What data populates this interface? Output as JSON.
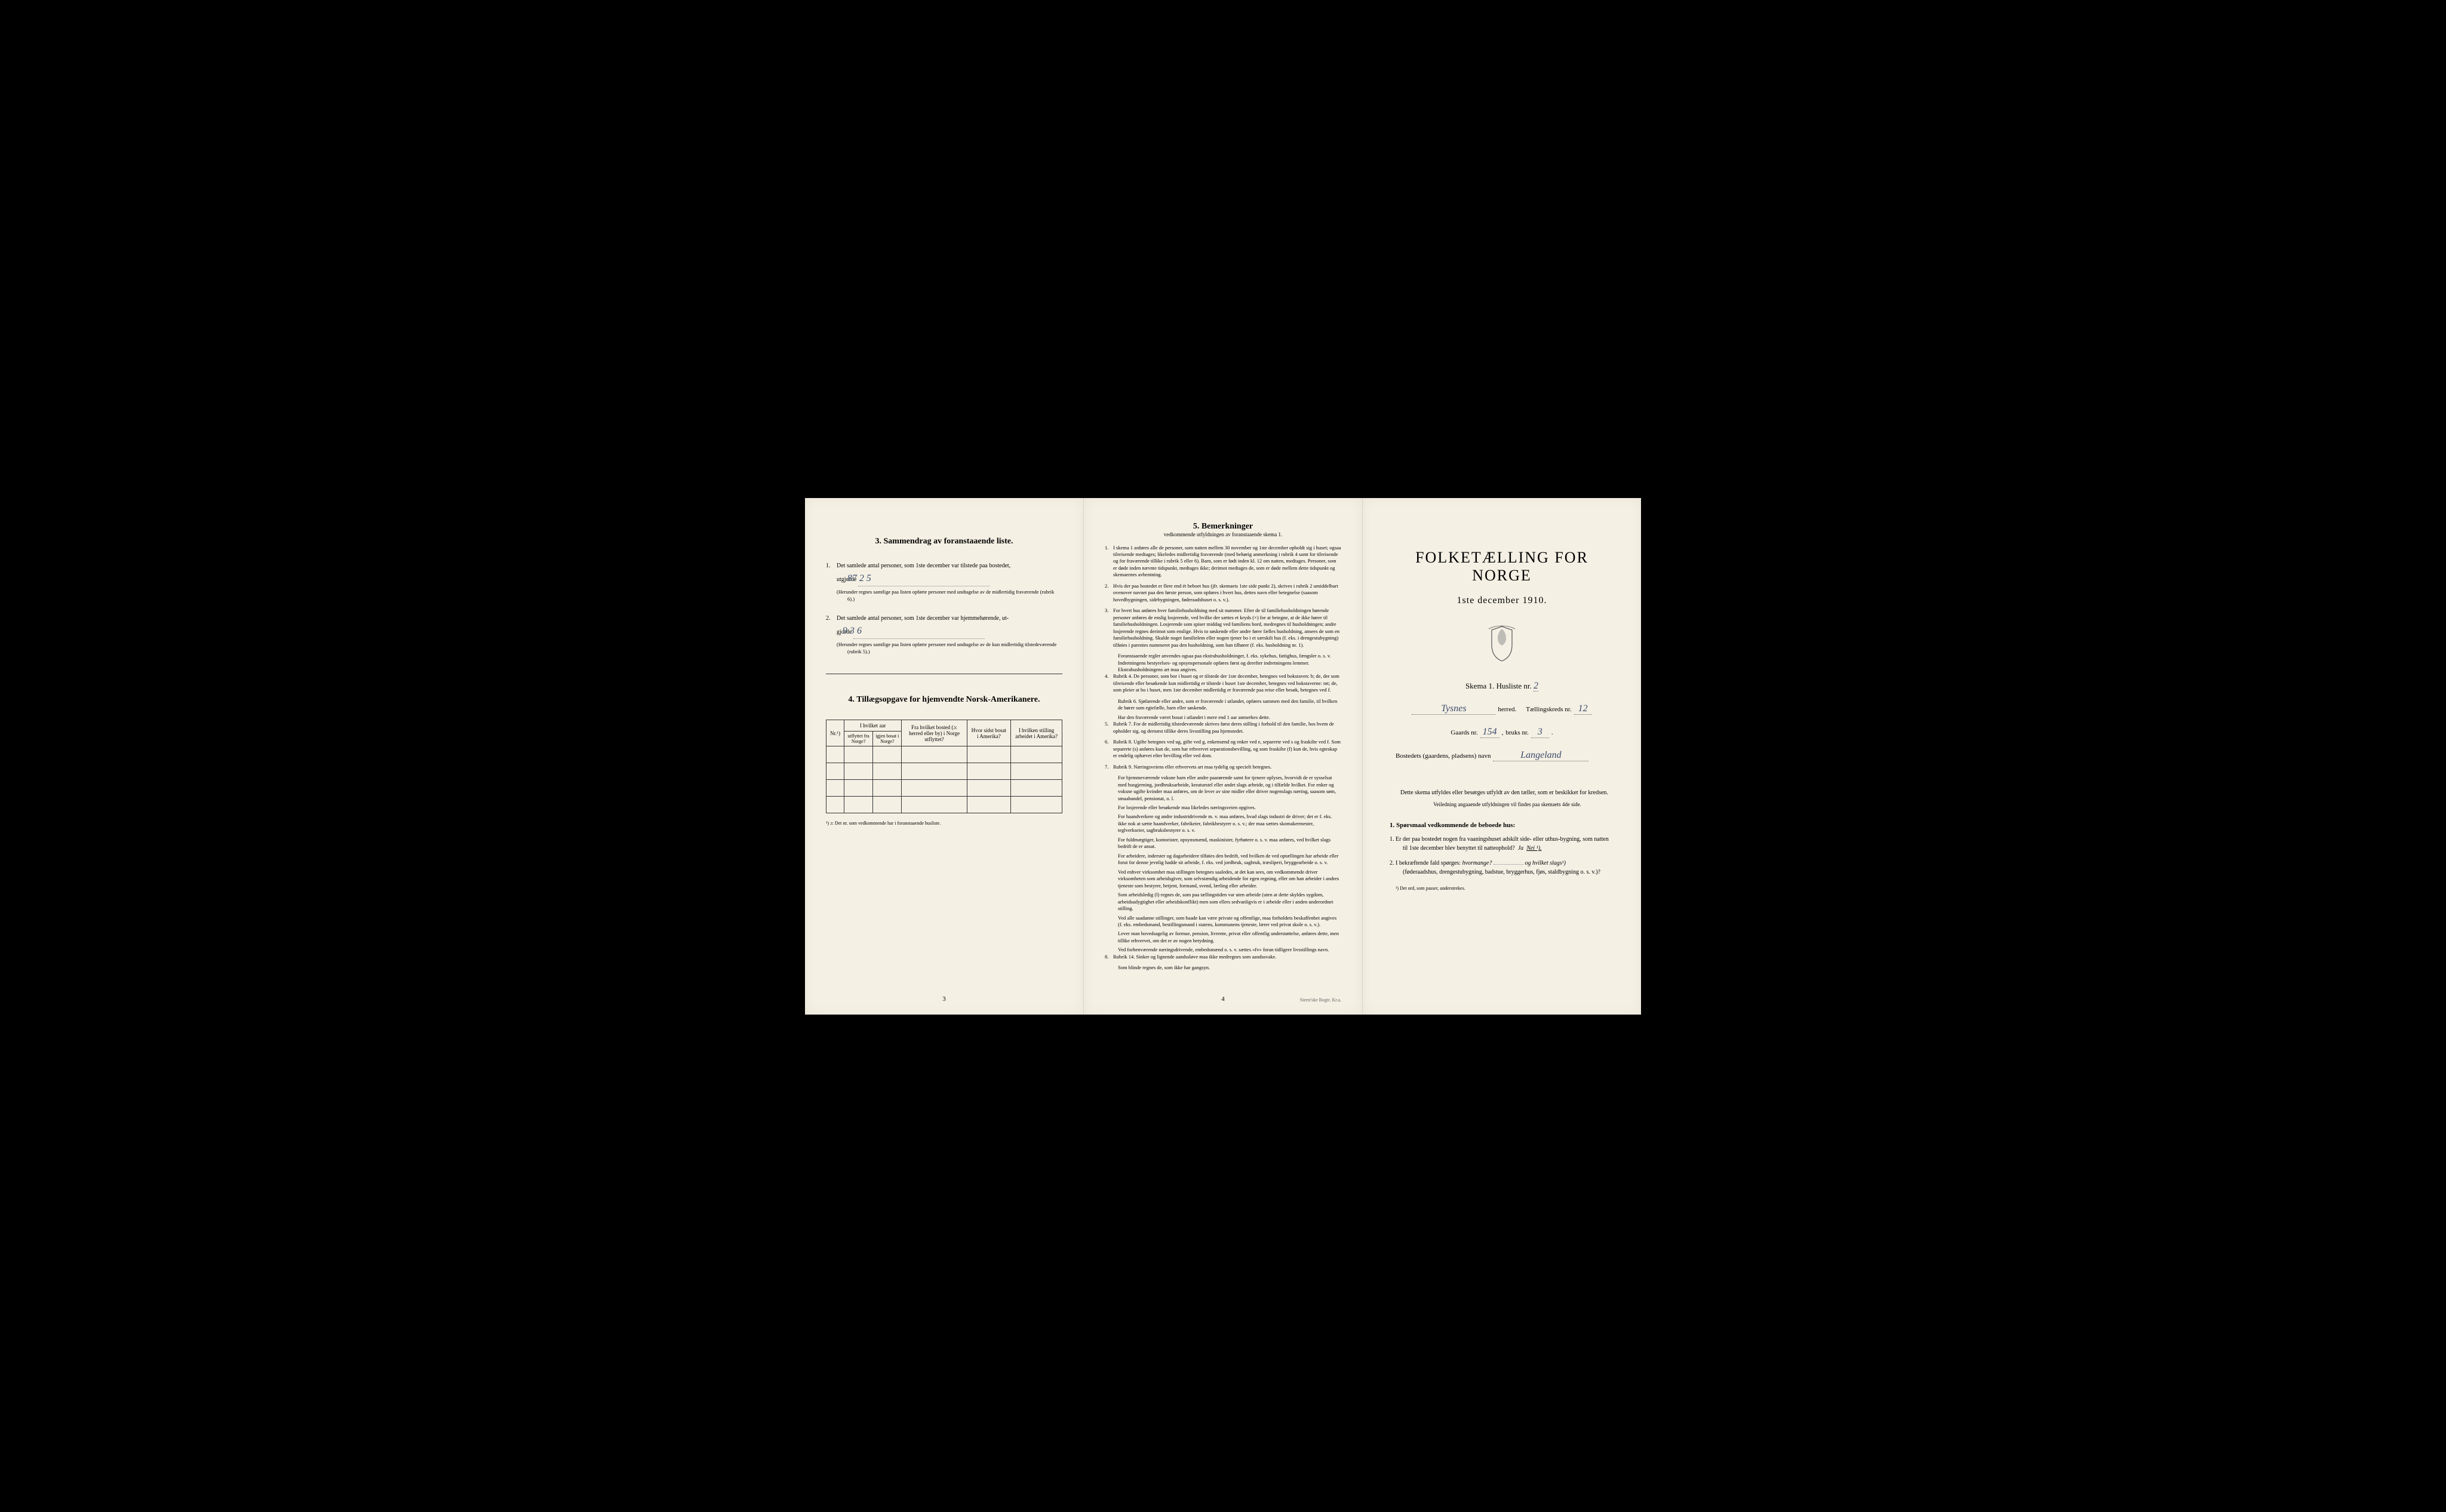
{
  "page_left": {
    "page_number": "3",
    "section3": {
      "heading": "3.   Sammendrag av foranstaaende liste.",
      "item1_pre": "Det samlede antal personer, som 1ste december var tilstede paa bostedet,",
      "item1_label": "utgjorde",
      "item1_value": "87  2  5",
      "item1_note": "(Herunder regnes samtlige paa listen opførte personer med undtagelse av de midlertidig fraværende (rubrik 6).)",
      "item2_pre": "Det samlede antal personer, som 1ste december var hjemmehørende, ut-",
      "item2_label": "gjorde",
      "item2_value": "9   3  6",
      "item2_note": "(Herunder regnes samtlige paa listen opførte personer med undtagelse av de kun midlertidig tilstedeværende (rubrik 5).)"
    },
    "section4": {
      "heading": "4.  Tillægsopgave for hjemvendte Norsk-Amerikanere.",
      "col_nr": "Nr.¹)",
      "col_year_group": "I hvilket aar",
      "col_emigrated": "utflyttet fra Norge?",
      "col_returned": "igjen bosat i Norge?",
      "col_from": "Fra hvilket bosted (ɔ: herred eller by) i Norge utflyttet?",
      "col_last_us": "Hvor sidst bosat i Amerika?",
      "col_occupation": "I hvilken stilling arbeidet i Amerika?",
      "footnote": "¹) ɔ: Det nr. som vedkommende har i foranstaaende husliste."
    }
  },
  "page_middle": {
    "page_number": "4",
    "printer": "Steen'ske Bogtr. Kr.a.",
    "heading": "5.   Bemerkninger",
    "subheading": "vedkommende utfyldningen av foranstaaende skema 1.",
    "items": [
      {
        "n": "1.",
        "text": "I skema 1 anføres alle de personer, som natten mellem 30 november og 1ste december opholdt sig i huset; ogsaa tilreisende medtages; likeledes midlertidig fraværende (med behørig anmerkning i rubrik 4 samt for tilreisende og for fraværende tillike i rubrik 5 eller 6). Barn, som er født inden kl. 12 om natten, medtages. Personer, som er døde inden nævnte tidspunkt, medtages ikke; derimot medtages de, som er døde mellem dette tidspunkt og skemaernes avhentning."
      },
      {
        "n": "2.",
        "text": "Hvis der paa bostedet er flere end ét beboet hus (jfr. skemaets 1ste side punkt 2), skrives i rubrik 2 umiddelbart ovenover navnet paa den første person, som opføres i hvert hus, dettes navn eller betegnelse (saasom hovedbygningen, sidebygningen, føderaadshuset o. s. v.)."
      },
      {
        "n": "3.",
        "text": "For hvert hus anføres hver familiehusholdning med sit nummer. Efter de til familiehusholdningen hørende personer anføres de enslig losjerende, ved hvilke der sættes et kryds (×) for at betegne, at de ikke hører til familiehusholdningen. Losjerende som spiser middag ved familiens bord, medregnes til husholdningen; andre losjerende regnes derimot som enslige. Hvis to søskende eller andre fører fælles husholdning, ansees de som en familiehusholdning. Skulde noget familielem eller nogen tjener bo i et særskilt hus (f. eks. i drengestubygning) tilføies i parentes nummeret paa den husholdning, som han tilhører (f. eks. husholdning nr. 1).",
        "sub": "Foranstaaende regler anvendes ogsaa paa ekstrahusholdninger, f. eks. sykehus, fattighus, fængsler o. s. v. Indretningens bestyrelses- og opsynspersonale opføres først og derefter indretningens lemmer. Ekstrahusholdningens art maa angives."
      },
      {
        "n": "4.",
        "text": "Rubrik 4. De personer, som bor i huset og er tilstede der 1ste december, betegnes ved bokstaven: b; de, der som tilreisende eller besøkende kun midlertidig er tilstede i huset 1ste december, betegnes ved bokstaverne: mt; de, som pleier at bo i huset, men 1ste december midlertidig er fraværende paa reise eller besøk, betegnes ved f.",
        "subs": [
          "Rubrik 6. Sjøfarende eller andre, som er fraværende i utlandet, opføres sammen med den familie, til hvilken de hører som egtefælle, barn eller søskende.",
          "Har den fraværende været bosat i utlandet i mere end 1 aar anmerkes dette."
        ]
      },
      {
        "n": "5.",
        "text": "Rubrik 7. For de midlertidig tilstedeværende skrives først deres stilling i forhold til den familie, hos hvem de opholder sig, og dernæst tillike deres livsstilling paa hjemstedet."
      },
      {
        "n": "6.",
        "text": "Rubrik 8. Ugifte betegnes ved ug, gifte ved g, enkemænd og enker ved e, separerte ved s og fraskilte ved f. Som separerte (s) anføres kun de, som har erhvervet separationsbevilling, og som fraskilte (f) kun de, hvis egteskap er endelig ophævet efter bevilling eller ved dom."
      },
      {
        "n": "7.",
        "text": "Rubrik 9. Næringsveiens eller erhvervets art maa tydelig og specielt betegnes.",
        "subs": [
          "For hjemmeværende voksne barn eller andre paarørende samt for tjenere oplyses, hvorvidt de er sysselsat med husgjerning, jordbruksarbeide, kreaturstel eller andet slags arbeide, og i tilfælde hvilket. For enker og voksne ugifte kvinder maa anføres, om de lever av sine midler eller driver nogenslags næring, saasom søm, smaahandel, pensionat, o. l.",
          "For losjerende eller besøkende maa likeledes næringsveien opgives.",
          "For haandverkere og andre industridrivende m. v. maa anføres, hvad slags industri de driver; det er f. eks. ikke nok at sætte haandverker, fabrikeier, fabrikbestyrer o. s. v.; der maa sættes skomakermester, teglverkseier, sagbruksbestyrer o. s. v.",
          "For fuldmægtiger, kontorister, opsynsmænd, maskinister, fyrbøtere o. s. v. maa anføres, ved hvilket slags bedrift de er ansat.",
          "For arbeidere, inderster og dagarbeidere tilføies den bedrift, ved hvilken de ved optællingen har arbeide eller forut for denne jevnlig hadde sit arbeide, f. eks. ved jordbruk, sagbruk, træsliperi, bryggearbeide o. s. v.",
          "Ved enhver virksomhet maa stillingen betegnes saaledes, at det kan sees, om vedkommende driver virksomheten som arbeidsgiver, som selvstændig arbeidende for egen regning, eller om han arbeider i andres tjeneste som bestyrer, betjent, formand, svend, lærling eller arbeider.",
          "Som arbeidsledig (l) regnes de, som paa tællingstiden var uten arbeide (uten at dette skyldes sygdom, arbeidsudygtighet eller arbeidskonflikt) men som ellers sedvanligvis er i arbeide eller i anden underordnet stilling.",
          "Ved alle saadanne stillinger, som baade kan være private og offentlige, maa forholdets beskaffenhet angives (f. eks. embedsmand, bestillingsmand i statens, kommunens tjeneste, lærer ved privat skole o. s. v.).",
          "Lever man hovedsagelig av formue, pension, livrente, privat eller offentlig understøttelse, anføres dette, men tillike erhvervet, om det er av nogen betydning.",
          "Ved forhenværende næringsdrivende, embedsmænd o. s. v. sættes «fv» foran tidligere livsstillings navn."
        ]
      },
      {
        "n": "8.",
        "text": "Rubrik 14. Sinker og lignende aandssløve maa ikke medregnes som aandssvake.",
        "sub": "Som blinde regnes de, som ikke har gangsyn."
      }
    ]
  },
  "page_right": {
    "main_title": "FOLKETÆLLING FOR NORGE",
    "subtitle": "1ste december 1910.",
    "schema_label": "Skema 1.  Husliste nr.",
    "schema_nr": "2",
    "herred_value": "Tysnes",
    "herred_label": "herred.",
    "kreds_label": "Tællingskreds nr.",
    "kreds_value": "12",
    "gaard_label": "Gaards nr.",
    "gaard_value": "154",
    "bruk_label": "bruks nr.",
    "bruk_value": "3",
    "bosted_label": "Bostedets (gaardens, pladsens) navn",
    "bosted_value": "Langeland",
    "description1": "Dette skema utfyldes eller besørges utfyldt av den tæller, som er beskikket for kredsen.",
    "description2": "Veiledning angaaende utfyldningen vil findes paa skemaets 4de side.",
    "questions_header": "1. Spørsmaal vedkommende de beboede hus:",
    "q1": "Er der paa bostedet nogen fra vaaningshuset adskilt side- eller uthus-bygning, som natten til 1ste december blev benyttet til natteophold?",
    "q1_ja": "Ja",
    "q1_nei": "Nei ¹).",
    "q2_pre": "I bekræftende fald spørges:",
    "q2_how_many": "hvormange?",
    "q2_and": "og hvilket slags¹)",
    "q2_examples": "(føderaadshus, drengestubygning, badstue, bryggerhus, fjøs, staldbygning o. s. v.)?",
    "footnote": "¹) Det ord, som passer, understrekes."
  }
}
